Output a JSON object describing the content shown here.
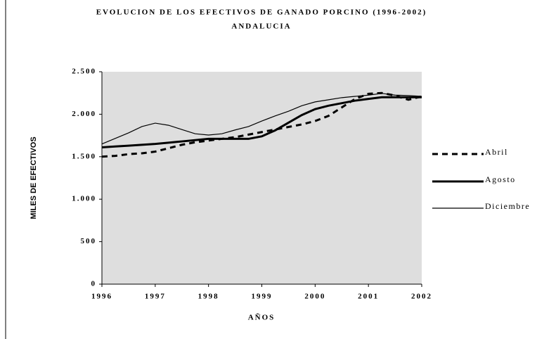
{
  "chart_data": {
    "type": "line",
    "title": "EVOLUCION DE LOS EFECTIVOS DE GANADO PORCINO (1996-2002)",
    "subtitle": "ANDALUCIA",
    "ylabel": "MILES DE EFECTIVOS",
    "xlabel": "AÑOS",
    "x": [
      1996,
      1996.25,
      1996.5,
      1996.75,
      1997,
      1997.25,
      1997.5,
      1997.75,
      1998,
      1998.25,
      1998.5,
      1998.75,
      1999,
      1999.25,
      1999.5,
      1999.75,
      2000,
      2000.25,
      2000.5,
      2000.75,
      2001,
      2001.25,
      2001.5,
      2001.75,
      2002
    ],
    "series": [
      {
        "name": "Abril",
        "color": "#000000",
        "dash": true,
        "weight": "thick",
        "values": [
          1500,
          1510,
          1530,
          1540,
          1560,
          1600,
          1640,
          1670,
          1690,
          1710,
          1730,
          1760,
          1790,
          1820,
          1850,
          1880,
          1920,
          1980,
          2080,
          2180,
          2240,
          2250,
          2220,
          2170,
          2210
        ]
      },
      {
        "name": "Agosto",
        "color": "#000000",
        "dash": false,
        "weight": "thick",
        "values": [
          1610,
          1620,
          1630,
          1640,
          1650,
          1665,
          1680,
          1695,
          1710,
          1710,
          1710,
          1710,
          1740,
          1810,
          1900,
          1990,
          2060,
          2100,
          2130,
          2160,
          2180,
          2200,
          2200,
          2200,
          2200
        ]
      },
      {
        "name": "Diciembre",
        "color": "#000000",
        "dash": false,
        "weight": "thin",
        "values": [
          1650,
          1715,
          1780,
          1855,
          1895,
          1870,
          1820,
          1770,
          1755,
          1770,
          1815,
          1855,
          1920,
          1980,
          2035,
          2100,
          2145,
          2170,
          2195,
          2210,
          2225,
          2245,
          2225,
          2220,
          2210
        ]
      }
    ],
    "xlim": [
      1996,
      2002
    ],
    "xticks": [
      1996,
      1997,
      1998,
      1999,
      2000,
      2001,
      2002
    ],
    "ylim": [
      0,
      2500
    ],
    "yticks": [
      0,
      500,
      {
        "value": 1000,
        "label": "1.000"
      },
      {
        "value": 1500,
        "label": "1.500"
      },
      {
        "value": 2000,
        "label": "2.000"
      },
      {
        "value": 2500,
        "label": "2.500"
      }
    ],
    "plot_background": "#dedede",
    "legend": "right"
  }
}
